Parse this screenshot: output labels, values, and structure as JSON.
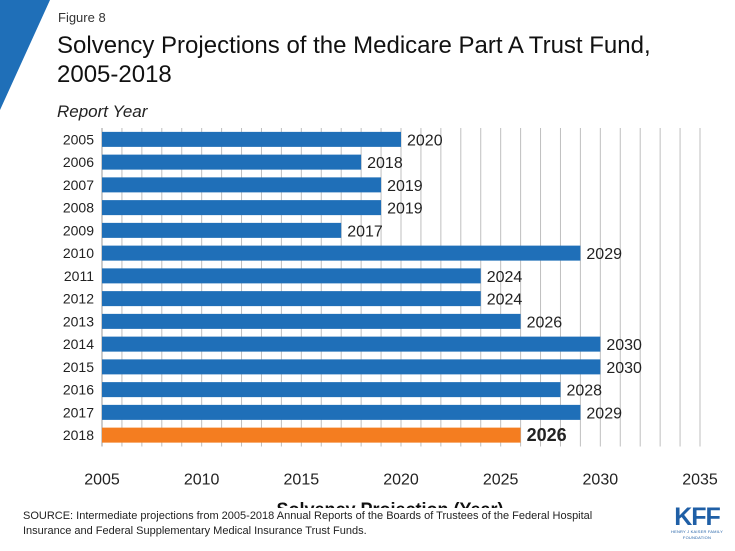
{
  "page": {
    "figure_label": "Figure 8",
    "title": "Solvency Projections of the Medicare Part A Trust Fund, 2005-2018",
    "source": "SOURCE: Intermediate projections from 2005-2018 Annual Reports of the Boards of Trustees of the Federal Hospital Insurance and Federal Supplementary Medical Insurance Trust Funds.",
    "logo": {
      "main": "KFF",
      "sub": "HENRY J KAISER FAMILY FOUNDATION"
    },
    "accent_color": "#1f6fb8"
  },
  "chart_data": {
    "type": "bar",
    "orientation": "horizontal",
    "categories": [
      "2005",
      "2006",
      "2007",
      "2008",
      "2009",
      "2010",
      "2011",
      "2012",
      "2013",
      "2014",
      "2015",
      "2016",
      "2017",
      "2018"
    ],
    "values": [
      2020,
      2018,
      2019,
      2019,
      2017,
      2029,
      2024,
      2024,
      2026,
      2030,
      2030,
      2028,
      2029,
      2026
    ],
    "data_labels": [
      "2020",
      "2018",
      "2019",
      "2019",
      "2017",
      "2029",
      "2024",
      "2024",
      "2026",
      "2030",
      "2030",
      "2028",
      "2029",
      "2026"
    ],
    "highlighted_category": "2018",
    "xlabel": "Solvency Projection (Year)",
    "ylabel": "Report Year",
    "xlim": [
      2005,
      2035
    ],
    "xticks": [
      2005,
      2010,
      2015,
      2020,
      2025,
      2030,
      2035
    ],
    "gridlines": true,
    "colors": {
      "bar": "#1f6fb8",
      "highlight": "#f47d20",
      "grid": "#bfbfbf"
    }
  }
}
